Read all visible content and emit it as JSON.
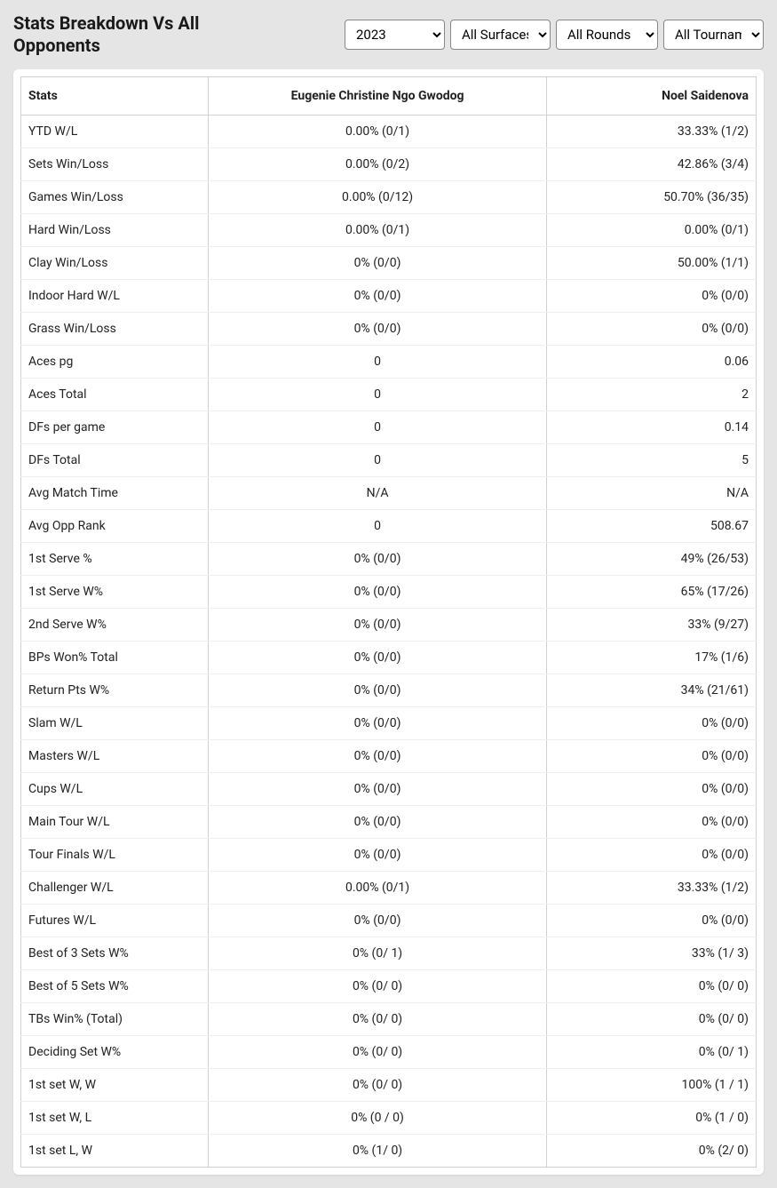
{
  "title": "Stats Breakdown Vs All Opponents",
  "filters": {
    "year": {
      "selected": "2023",
      "options": [
        "2023"
      ]
    },
    "surface": {
      "selected": "All Surfaces",
      "options": [
        "All Surfaces"
      ]
    },
    "round": {
      "selected": "All Rounds",
      "options": [
        "All Rounds"
      ]
    },
    "tournament": {
      "selected": "All Tournaments",
      "options": [
        "All Tournaments"
      ]
    }
  },
  "table": {
    "columns": [
      "Stats",
      "Eugenie Christine Ngo Gwodog",
      "Noel Saidenova"
    ],
    "rows": [
      [
        "YTD W/L",
        "0.00% (0/1)",
        "33.33% (1/2)"
      ],
      [
        "Sets Win/Loss",
        "0.00% (0/2)",
        "42.86% (3/4)"
      ],
      [
        "Games Win/Loss",
        "0.00% (0/12)",
        "50.70% (36/35)"
      ],
      [
        "Hard Win/Loss",
        "0.00% (0/1)",
        "0.00% (0/1)"
      ],
      [
        "Clay Win/Loss",
        "0% (0/0)",
        "50.00% (1/1)"
      ],
      [
        "Indoor Hard W/L",
        "0% (0/0)",
        "0% (0/0)"
      ],
      [
        "Grass Win/Loss",
        "0% (0/0)",
        "0% (0/0)"
      ],
      [
        "Aces pg",
        "0",
        "0.06"
      ],
      [
        "Aces Total",
        "0",
        "2"
      ],
      [
        "DFs per game",
        "0",
        "0.14"
      ],
      [
        "DFs Total",
        "0",
        "5"
      ],
      [
        "Avg Match Time",
        "N/A",
        "N/A"
      ],
      [
        "Avg Opp Rank",
        "0",
        "508.67"
      ],
      [
        "1st Serve %",
        "0% (0/0)",
        "49% (26/53)"
      ],
      [
        "1st Serve W%",
        "0% (0/0)",
        "65% (17/26)"
      ],
      [
        "2nd Serve W%",
        "0% (0/0)",
        "33% (9/27)"
      ],
      [
        "BPs Won% Total",
        "0% (0/0)",
        "17% (1/6)"
      ],
      [
        "Return Pts W%",
        "0% (0/0)",
        "34% (21/61)"
      ],
      [
        "Slam W/L",
        "0% (0/0)",
        "0% (0/0)"
      ],
      [
        "Masters W/L",
        "0% (0/0)",
        "0% (0/0)"
      ],
      [
        "Cups W/L",
        "0% (0/0)",
        "0% (0/0)"
      ],
      [
        "Main Tour W/L",
        "0% (0/0)",
        "0% (0/0)"
      ],
      [
        "Tour Finals W/L",
        "0% (0/0)",
        "0% (0/0)"
      ],
      [
        "Challenger W/L",
        "0.00% (0/1)",
        "33.33% (1/2)"
      ],
      [
        "Futures W/L",
        "0% (0/0)",
        "0% (0/0)"
      ],
      [
        "Best of 3 Sets W%",
        "0% (0/ 1)",
        "33% (1/ 3)"
      ],
      [
        "Best of 5 Sets W%",
        "0% (0/ 0)",
        "0% (0/ 0)"
      ],
      [
        "TBs Win% (Total)",
        "0% (0/ 0)",
        "0% (0/ 0)"
      ],
      [
        "Deciding Set W%",
        "0% (0/ 0)",
        "0% (0/ 1)"
      ],
      [
        "1st set W, W",
        "0% (0/ 0)",
        "100% (1 / 1)"
      ],
      [
        "1st set W, L",
        "0% (0 / 0)",
        "0% (1 / 0)"
      ],
      [
        "1st set L, W",
        "0% (1/ 0)",
        "0% (2/ 0)"
      ]
    ]
  },
  "colors": {
    "page_bg": "#e5e5e5",
    "card_bg": "#ffffff",
    "border": "#d0d0d0",
    "row_divider": "#eeeeee",
    "text": "#222222"
  }
}
